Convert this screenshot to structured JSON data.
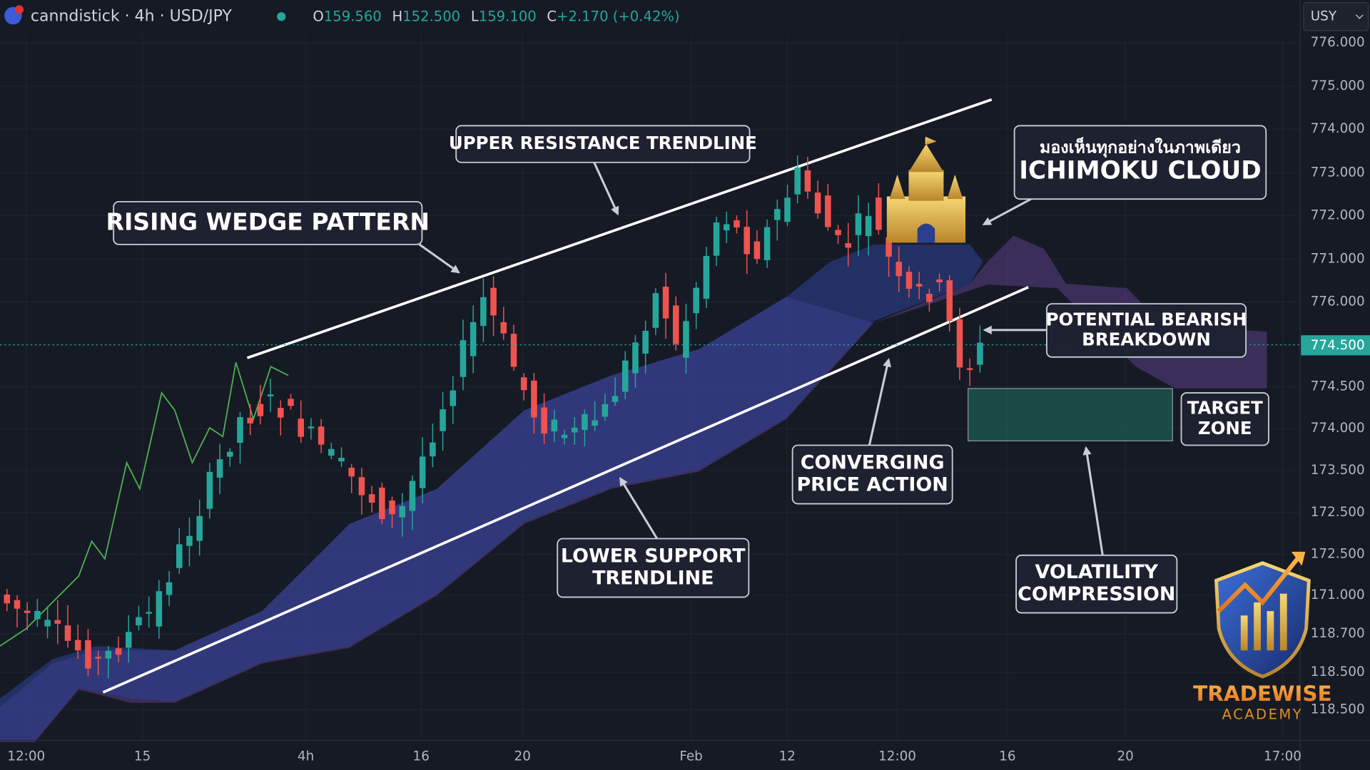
{
  "header": {
    "symbol": "canndistick · 4h · USD/JPY",
    "ohlc": [
      {
        "label": "O",
        "value": "159.560"
      },
      {
        "label": "H",
        "value": "152.500"
      },
      {
        "label": "L",
        "value": "159.100"
      },
      {
        "label": "C",
        "value": "+2.170 (+0.42%)"
      }
    ],
    "currency": "USY"
  },
  "price_axis": [
    "776.000",
    "775.000",
    "774.000",
    "773.000",
    "772.000",
    "771.000",
    "776.000",
    "774.500",
    "774.000",
    "173.500",
    "172.500",
    "172.500",
    "171.000",
    "118.700",
    "118.500",
    "118.500"
  ],
  "current_price": "774.500",
  "time_axis": [
    "12:00",
    "15",
    "4h",
    "16",
    "20",
    "Feb",
    "12",
    "12:00",
    "16",
    "20",
    "17:00"
  ],
  "annotations": [
    {
      "lines": [
        "RISING WEDGE PATTERN"
      ]
    },
    {
      "lines": [
        "UPPER RESISTANCE TRENDLINE"
      ]
    },
    {
      "lines": [
        "มองเห็นทุกอย่างในภาพเดียว",
        "ICHIMOKU CLOUD"
      ]
    },
    {
      "lines": [
        "POTENTIAL BEARISH",
        "BREAKDOWN"
      ]
    },
    {
      "lines": [
        "TARGET",
        "ZONE"
      ]
    },
    {
      "lines": [
        "CONVERGING",
        "PRICE ACTION"
      ]
    },
    {
      "lines": [
        "LOWER SUPPORT",
        "TRENDLINE"
      ]
    },
    {
      "lines": [
        "VOLATILITY",
        "COMPRESSION"
      ]
    }
  ],
  "logo": {
    "name": "TRADEWISE",
    "subtitle": "ACADEMY"
  }
}
